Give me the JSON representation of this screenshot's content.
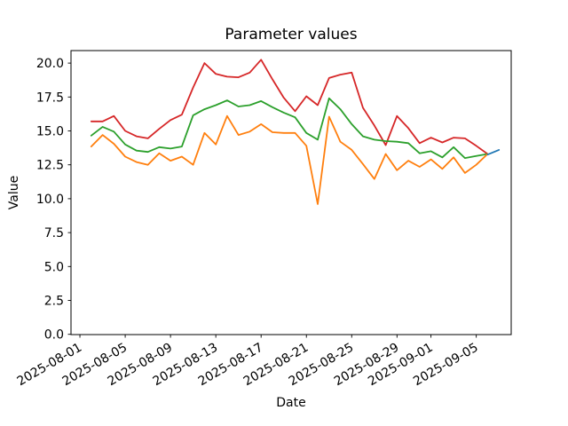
{
  "figure": {
    "title": "Parameter values",
    "xlabel": "Date",
    "ylabel": "Value"
  },
  "chart_data": {
    "type": "line",
    "title": "Parameter values",
    "xlabel": "Date",
    "ylabel": "Value",
    "grid": false,
    "legend": "none",
    "ylim": [
      0,
      20.9
    ],
    "x_dates": [
      "2025-08-02",
      "2025-08-03",
      "2025-08-04",
      "2025-08-05",
      "2025-08-06",
      "2025-08-07",
      "2025-08-08",
      "2025-08-09",
      "2025-08-10",
      "2025-08-11",
      "2025-08-12",
      "2025-08-13",
      "2025-08-14",
      "2025-08-15",
      "2025-08-16",
      "2025-08-17",
      "2025-08-18",
      "2025-08-19",
      "2025-08-20",
      "2025-08-21",
      "2025-08-22",
      "2025-08-23",
      "2025-08-24",
      "2025-08-25",
      "2025-08-26",
      "2025-08-27",
      "2025-08-28",
      "2025-08-29",
      "2025-08-30",
      "2025-08-31",
      "2025-09-01",
      "2025-09-02",
      "2025-09-03",
      "2025-09-04",
      "2025-09-05",
      "2025-09-06"
    ],
    "series": [
      {
        "name": "red",
        "color": "#d62728",
        "values": [
          15.7,
          15.7,
          16.1,
          15.0,
          14.6,
          14.45,
          15.15,
          15.8,
          16.2,
          18.2,
          20.0,
          19.2,
          19.0,
          18.95,
          19.3,
          20.25,
          18.8,
          17.45,
          16.45,
          17.55,
          16.9,
          18.9,
          19.15,
          19.3,
          16.7,
          15.4,
          13.95,
          16.1,
          15.2,
          14.1,
          14.5,
          14.15,
          14.5,
          14.45,
          13.9,
          13.3
        ]
      },
      {
        "name": "green",
        "color": "#2ca02c",
        "values": [
          14.65,
          15.3,
          14.95,
          14.0,
          13.55,
          13.45,
          13.8,
          13.7,
          13.85,
          16.15,
          16.6,
          16.9,
          17.25,
          16.8,
          16.9,
          17.2,
          16.75,
          16.35,
          16.0,
          14.85,
          14.35,
          17.4,
          16.6,
          15.5,
          14.6,
          14.35,
          14.25,
          14.2,
          14.1,
          13.35,
          13.5,
          13.05,
          13.8,
          13.0,
          13.15,
          13.3
        ]
      },
      {
        "name": "orange",
        "color": "#ff7f0e",
        "values": [
          13.85,
          14.7,
          14.05,
          13.1,
          12.7,
          12.5,
          13.35,
          12.8,
          13.1,
          12.5,
          14.85,
          14.0,
          16.1,
          14.7,
          14.95,
          15.5,
          14.9,
          14.85,
          14.85,
          13.9,
          9.6,
          16.05,
          14.2,
          13.6,
          12.55,
          11.45,
          13.3,
          12.1,
          12.8,
          12.35,
          12.9,
          12.2,
          13.05,
          11.9,
          12.5,
          13.3
        ]
      },
      {
        "name": "blue",
        "color": "#1f77b4",
        "x_dates": [
          "2025-09-06",
          "2025-09-07"
        ],
        "values": [
          13.25,
          13.6
        ]
      }
    ],
    "yticks": [
      0.0,
      2.5,
      5.0,
      7.5,
      10.0,
      12.5,
      15.0,
      17.5,
      20.0
    ],
    "ytick_labels": [
      "0.0",
      "2.5",
      "5.0",
      "7.5",
      "10.0",
      "12.5",
      "15.0",
      "17.5",
      "20.0"
    ],
    "xtick_dates": [
      "2025-08-01",
      "2025-08-05",
      "2025-08-09",
      "2025-08-13",
      "2025-08-17",
      "2025-08-21",
      "2025-08-25",
      "2025-08-29",
      "2025-09-01",
      "2025-09-05"
    ],
    "xtick_labels": [
      "2025-08-01",
      "2025-08-05",
      "2025-08-09",
      "2025-08-13",
      "2025-08-17",
      "2025-08-21",
      "2025-08-25",
      "2025-08-29",
      "2025-09-01",
      "2025-09-05"
    ]
  }
}
